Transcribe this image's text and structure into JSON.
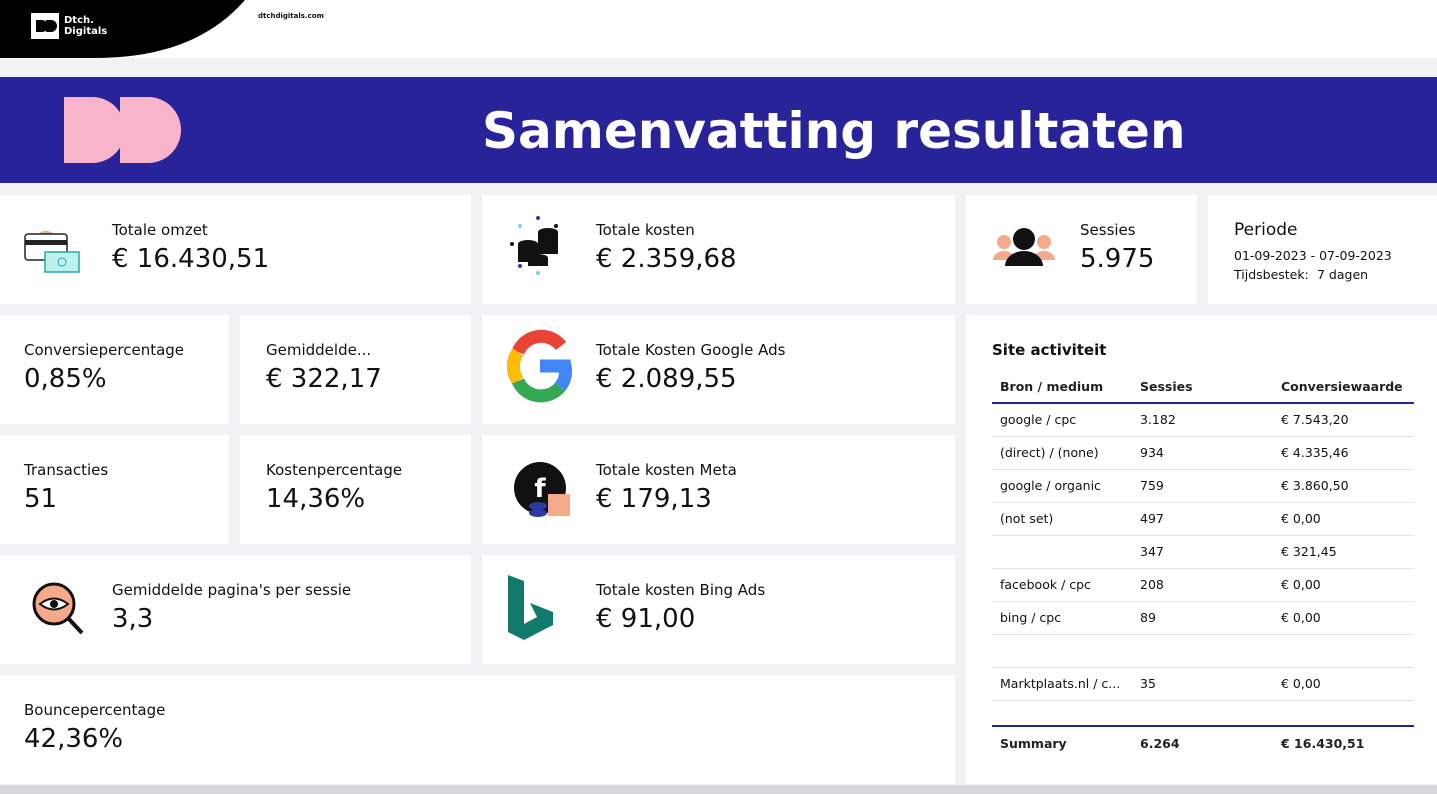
{
  "header": {
    "brand_line1": "Dtch.",
    "brand_line2": "Digitals",
    "url": "dtchdigitals.com"
  },
  "banner": {
    "title": "Samenvatting resultaten"
  },
  "kpis": [
    {
      "label": "Totale omzet",
      "value": "€ 16.430,51"
    },
    {
      "label": "Totale kosten",
      "value": "€ 2.359,68"
    },
    {
      "label": "Sessies",
      "value": "5.975"
    },
    {
      "label": "Conversiepercentage",
      "value": "0,85%"
    },
    {
      "label": "Gemiddelde...",
      "value": "€ 322,17"
    },
    {
      "label": "Totale Kosten Google Ads",
      "value": "€ 2.089,55"
    },
    {
      "label": "Transacties",
      "value": "51"
    },
    {
      "label": "Kostenpercentage",
      "value": "14,36%"
    },
    {
      "label": "Totale kosten Meta",
      "value": "€ 179,13"
    },
    {
      "label": "Gemiddelde pagina's per sessie",
      "value": "3,3"
    },
    {
      "label": "Totale kosten Bing Ads",
      "value": "€ 91,00"
    },
    {
      "label": "Bouncepercentage",
      "value": "42,36%"
    }
  ],
  "period": {
    "label": "Periode",
    "range": "01-09-2023 - 07-09-2023",
    "duration_label": "Tijdsbestek:",
    "duration": "7 dagen"
  },
  "site_activity": {
    "title": "Site activiteit",
    "columns": [
      "Bron / medium",
      "Sessies",
      "Conversiewaarde"
    ],
    "rows": [
      [
        "google / cpc",
        "3.182",
        "€ 7.543,20"
      ],
      [
        "(direct) / (none)",
        "934",
        "€ 4.335,46"
      ],
      [
        "google / organic",
        "759",
        "€ 3.860,50"
      ],
      [
        "(not set)",
        "497",
        "€ 0,00"
      ],
      [
        null,
        "347",
        "€ 321,45"
      ],
      [
        "facebook / cpc",
        "208",
        "€ 0,00"
      ],
      [
        "bing / cpc",
        "89",
        "€ 0,00"
      ],
      [
        null,
        null,
        null
      ],
      [
        "Marktplaats.nl / c...",
        "35",
        "€ 0,00"
      ]
    ],
    "summary": [
      "Summary",
      "6.264",
      "€ 16.430,51"
    ]
  }
}
